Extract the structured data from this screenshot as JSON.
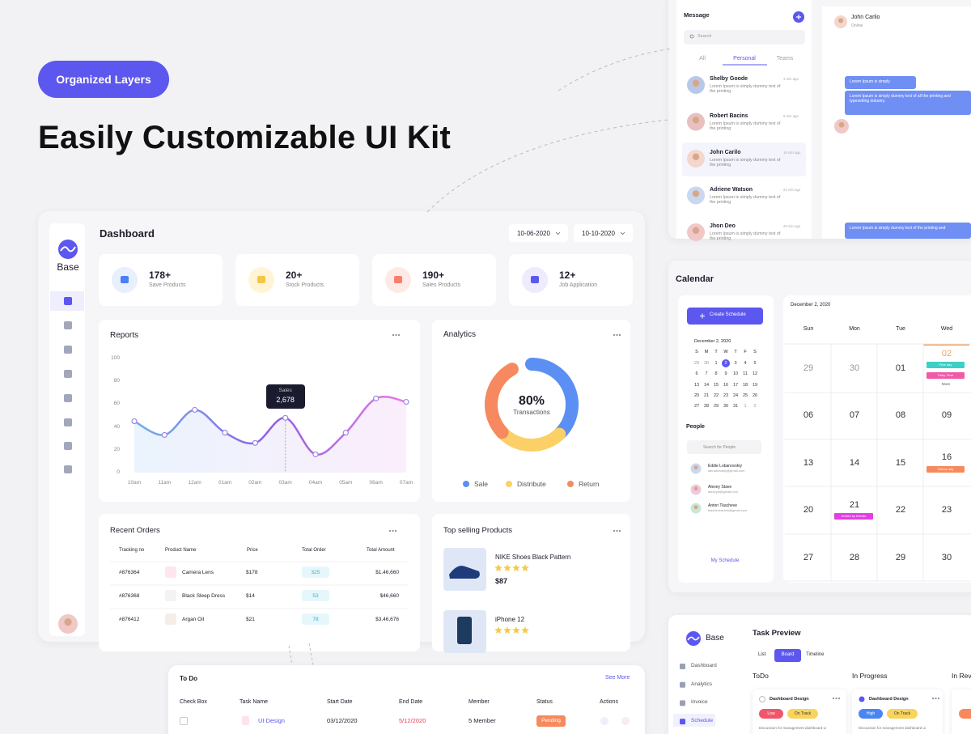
{
  "hero": {
    "badge": "Organized Layers",
    "title": "Easily Customizable UI Kit"
  },
  "messages": {
    "title": "Message",
    "search": "Search",
    "tabs": [
      "All",
      "Personal",
      "Teams"
    ],
    "items": [
      {
        "name": "Shelby Goode",
        "text": "Lorem Ipsum is simply dummy text of the printing",
        "time": "3 min ago"
      },
      {
        "name": "Robert Bacins",
        "text": "Lorem Ipsum is simply dummy text of the printing",
        "time": "9 min ago"
      },
      {
        "name": "John Carilo",
        "text": "Lorem Ipsum is simply dummy text of the printing",
        "time": "15 min ago"
      },
      {
        "name": "Adriene Watson",
        "text": "Lorem Ipsum is simply dummy text of the printing",
        "time": "21 min ago"
      },
      {
        "name": "Jhon Deo",
        "text": "Lorem Ipsum is simply dummy text of the printing",
        "time": "29 min ago"
      }
    ]
  },
  "chat": {
    "name": "John Carlio",
    "status": "Online",
    "bubbles": [
      "Lorem Ipsum is simply",
      "Lorem Ipsum is simply dummy text of all the printing and typesetting industry.",
      "Lorem Ipsum is simply dummy text of the printing and"
    ]
  },
  "calendar": {
    "title": "Calendar",
    "button": "Create Schedule",
    "mini_month": "December 2, 2020",
    "weekday_initials": [
      "S",
      "M",
      "T",
      "W",
      "T",
      "F",
      "S"
    ],
    "mini_days": [
      [
        "29",
        "30",
        "1",
        "2",
        "3",
        "4",
        "5"
      ],
      [
        "6",
        "7",
        "8",
        "9",
        "10",
        "11",
        "12"
      ],
      [
        "13",
        "14",
        "15",
        "16",
        "17",
        "18",
        "19"
      ],
      [
        "20",
        "21",
        "22",
        "23",
        "24",
        "25",
        "26"
      ],
      [
        "27",
        "28",
        "29",
        "30",
        "31",
        "1",
        "2"
      ]
    ],
    "people_title": "People",
    "people_search": "Search for People",
    "people": [
      {
        "name": "Eddie Lobanovskiy",
        "email": "laboanovskiy@gmail.com"
      },
      {
        "name": "Alexey Stave",
        "email": "alexeyst@gmail.com"
      },
      {
        "name": "Anton Tkacheve",
        "email": "tkacheveanton@gmail.com"
      }
    ],
    "my_schedule": "My Schedule",
    "date": "December 2, 2020",
    "weekdays": [
      "Sun",
      "Mon",
      "Tue",
      "Wed"
    ],
    "weeks": [
      [
        "29",
        "30",
        "01",
        "02"
      ],
      [
        "06",
        "07",
        "08",
        "09"
      ],
      [
        "13",
        "14",
        "15",
        "16"
      ],
      [
        "20",
        "21",
        "22",
        "23"
      ],
      [
        "27",
        "28",
        "29",
        "30"
      ]
    ],
    "events": [
      {
        "label": "Free day",
        "color": "#3ecfc6"
      },
      {
        "label": "Party Time",
        "color": "#f15aa8"
      },
      {
        "label": "Videos day",
        "color": "#f78a5c"
      },
      {
        "label": "Invited by friends",
        "color": "#e13fe0"
      }
    ],
    "more": "More"
  },
  "dashboard": {
    "brand": "Base",
    "title": "Dashboard",
    "dates": [
      "10-06-2020",
      "10-10-2020"
    ],
    "stats": [
      {
        "value": "178+",
        "label": "Save Products"
      },
      {
        "value": "20+",
        "label": "Stock Products"
      },
      {
        "value": "190+",
        "label": "Sales Products"
      },
      {
        "value": "12+",
        "label": "Job Application"
      }
    ],
    "reports": {
      "title": "Reports",
      "chart": {
        "type": "line",
        "categories": [
          "10am",
          "11am",
          "12am",
          "01am",
          "02am",
          "03am",
          "04am",
          "05am",
          "06am",
          "07am"
        ],
        "values": [
          45,
          33,
          55,
          35,
          26,
          48,
          16,
          35,
          65,
          62
        ],
        "ylim": [
          0,
          100
        ],
        "yticks": [
          0,
          20,
          40,
          60,
          80,
          100
        ],
        "tooltip": {
          "label": "Sales",
          "value": "2,678"
        }
      }
    },
    "analytics": {
      "title": "Analytics",
      "center_value": "80%",
      "center_label": "Transactions",
      "series": [
        {
          "name": "Sale",
          "value": 38,
          "color": "#5b8ff3"
        },
        {
          "name": "Distribute",
          "value": 25,
          "color": "#fbd066"
        },
        {
          "name": "Return",
          "value": 29,
          "color": "#f6895f"
        }
      ]
    },
    "orders": {
      "title": "Recent Orders",
      "columns": [
        "Tracking no",
        "Product Name",
        "Price",
        "Total Order",
        "Total Amount"
      ],
      "rows": [
        [
          "#876364",
          "Camera Lens",
          "$178",
          "325",
          "$1,46,660"
        ],
        [
          "#876368",
          "Black Sleep Dress",
          "$14",
          "53",
          "$46,660"
        ],
        [
          "#876412",
          "Argan Oil",
          "$21",
          "78",
          "$3,46,676"
        ]
      ]
    },
    "top": {
      "title": "Top selling Products",
      "items": [
        {
          "name": "NIKE Shoes Black Pattern",
          "price": "$87"
        },
        {
          "name": "iPhone 12"
        }
      ]
    }
  },
  "todo": {
    "title": "To Do",
    "link": "See More",
    "columns": [
      "Check Box",
      "Task Name",
      "Start Date",
      "End Date",
      "Member",
      "Status",
      "Actions"
    ],
    "rows": [
      [
        "UI Design",
        "03/12/2020",
        "5/12/2020",
        "5 Member",
        "Pending"
      ]
    ]
  },
  "tasks": {
    "brand": "Base",
    "title": "Task Preview",
    "tabs": [
      "List",
      "Board",
      "Timeline"
    ],
    "nav": [
      "Dashboard",
      "Analytics",
      "Invoice",
      "Schedule"
    ],
    "columns": [
      "ToDo",
      "In Progress",
      "In Rev"
    ],
    "cards": [
      {
        "title": "Dashboard Design",
        "tags": [
          "Low",
          "On Track"
        ],
        "text": "Discussion for management dashboard ui"
      },
      {
        "title": "Dashboard Design",
        "tags": [
          "High",
          "On Track"
        ],
        "text": "Discussion for management dashboard ui"
      }
    ]
  }
}
